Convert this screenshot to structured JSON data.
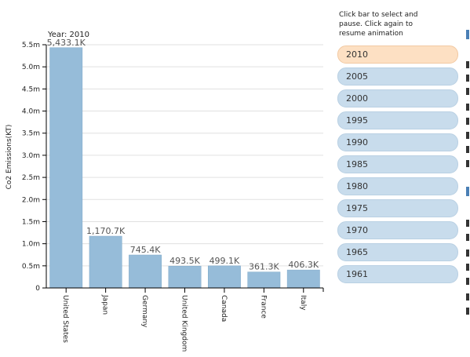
{
  "instructions": "Click bar to select and pause. Click again to resume animation",
  "years": [
    "2010",
    "2005",
    "2000",
    "1995",
    "1990",
    "1985",
    "1980",
    "1975",
    "1970",
    "1965",
    "1961"
  ],
  "selected_year_index": 0,
  "colors": {
    "bar": "#96bcd9",
    "bar_stroke": "#7ba7c8",
    "active_button": "#fde0c3",
    "button": "#c8dcec"
  },
  "chart_data": {
    "type": "bar",
    "title": "Year: 2010",
    "ylabel": "Co2 Emissions(KT)",
    "xlabel": "",
    "ylim": [
      0,
      5500000
    ],
    "yticks": [
      0,
      500000,
      1000000,
      1500000,
      2000000,
      2500000,
      3000000,
      3500000,
      4000000,
      4500000,
      5000000,
      5500000
    ],
    "ytick_labels": [
      "0",
      "0.5m",
      "1.0m",
      "1.5m",
      "2.0m",
      "2.5m",
      "3.0m",
      "3.5m",
      "4.0m",
      "4.5m",
      "5.0m",
      "5.5m"
    ],
    "categories": [
      "United States",
      "Japan",
      "Germany",
      "United Kingdom",
      "Canada",
      "France",
      "Italy"
    ],
    "values": [
      5433100,
      1170700,
      745400,
      493500,
      499100,
      361300,
      406300
    ],
    "value_labels": [
      "5,433.1K",
      "1,170.7K",
      "745.4K",
      "493.5K",
      "499.1K",
      "361.3K",
      "406.3K"
    ]
  }
}
